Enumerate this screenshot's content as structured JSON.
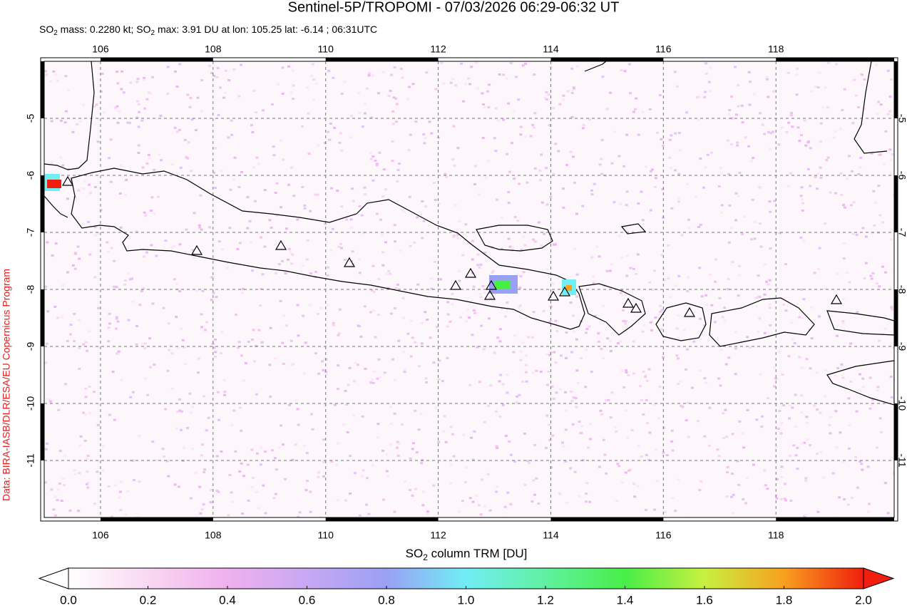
{
  "chart_data": {
    "type": "map",
    "title": "Sentinel-5P/TROPOMI - 07/03/2026 06:29-06:32 UT",
    "subtitle_parts": [
      "SO",
      "2",
      " mass: 0.2280 kt; SO",
      "2",
      " max: 3.91 DU at lon: 105.25 lat: -6.14 ; 06:31UTC"
    ],
    "credit": "Data: BIRA-IASB/DLR/ESA/EU Copernicus Program",
    "xlim": [
      105,
      120.1
    ],
    "ylim": [
      -12,
      -4
    ],
    "xticks": [
      106,
      108,
      110,
      112,
      114,
      116,
      118
    ],
    "yticks": [
      -11,
      -10,
      -9,
      -8,
      -7,
      -6,
      -5
    ],
    "grid": true,
    "colorbar": {
      "label_parts": [
        "SO",
        "2",
        " column TRM [DU]"
      ],
      "lim": [
        0,
        2
      ],
      "ticks": [
        {
          "value": 0,
          "label": "0.0"
        },
        {
          "value": 0.2,
          "label": "0.2"
        },
        {
          "value": 0.4,
          "label": "0.4"
        },
        {
          "value": 0.6,
          "label": "0.6"
        },
        {
          "value": 0.8,
          "label": "0.8"
        },
        {
          "value": 1,
          "label": "1.0"
        },
        {
          "value": 1.2,
          "label": "1.2"
        },
        {
          "value": 1.4,
          "label": "1.4"
        },
        {
          "value": 1.6,
          "label": "1.6"
        },
        {
          "value": 1.8,
          "label": "1.8"
        },
        {
          "value": 2,
          "label": "2.0"
        }
      ],
      "colorscale": [
        "#ffffff",
        "#f9d8f2",
        "#efb0ee",
        "#c8a8f4",
        "#9aa0f4",
        "#70eef4",
        "#60f0a0",
        "#48ee48",
        "#c8f040",
        "#f8a020",
        "#f01e0e"
      ]
    }
  }
}
